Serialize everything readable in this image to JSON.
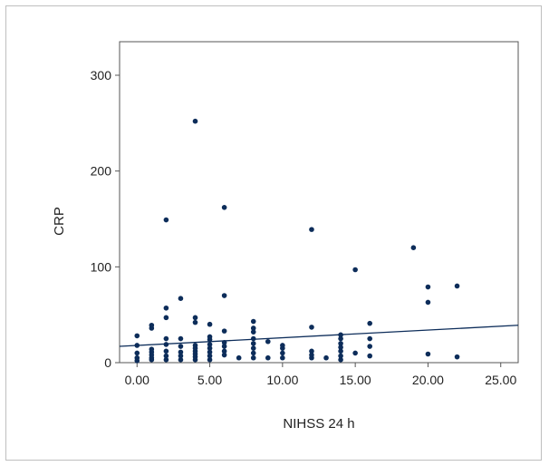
{
  "chart_data": {
    "type": "scatter",
    "xlabel": "NIHSS 24 h",
    "ylabel": "CRP",
    "xlim": [
      -1.2,
      26.2
    ],
    "ylim": [
      0,
      335
    ],
    "x_ticks": [
      0,
      5,
      10,
      15,
      20,
      25
    ],
    "x_tick_labels": [
      "0.00",
      "5.00",
      "10.00",
      "15.00",
      "20.00",
      "25.00"
    ],
    "y_ticks": [
      0,
      100,
      200,
      300
    ],
    "y_tick_labels": [
      "0",
      "100",
      "200",
      "300"
    ],
    "point_color": "#0d2d5a",
    "line_color": "#0d2d5a",
    "fit_line": {
      "x": [
        -1.2,
        26.2
      ],
      "y": [
        17,
        39
      ]
    },
    "points": [
      {
        "x": 0,
        "y": 2
      },
      {
        "x": 0,
        "y": 5
      },
      {
        "x": 0,
        "y": 10
      },
      {
        "x": 0,
        "y": 18
      },
      {
        "x": 0,
        "y": 28
      },
      {
        "x": 1,
        "y": 3
      },
      {
        "x": 1,
        "y": 5
      },
      {
        "x": 1,
        "y": 8
      },
      {
        "x": 1,
        "y": 11
      },
      {
        "x": 1,
        "y": 14
      },
      {
        "x": 1,
        "y": 36
      },
      {
        "x": 1,
        "y": 39
      },
      {
        "x": 2,
        "y": 3
      },
      {
        "x": 2,
        "y": 7
      },
      {
        "x": 2,
        "y": 12
      },
      {
        "x": 2,
        "y": 19
      },
      {
        "x": 2,
        "y": 25
      },
      {
        "x": 2,
        "y": 47
      },
      {
        "x": 2,
        "y": 57
      },
      {
        "x": 2,
        "y": 149
      },
      {
        "x": 3,
        "y": 3
      },
      {
        "x": 3,
        "y": 7
      },
      {
        "x": 3,
        "y": 11
      },
      {
        "x": 3,
        "y": 17
      },
      {
        "x": 3,
        "y": 25
      },
      {
        "x": 3,
        "y": 67
      },
      {
        "x": 4,
        "y": 3
      },
      {
        "x": 4,
        "y": 6
      },
      {
        "x": 4,
        "y": 9
      },
      {
        "x": 4,
        "y": 12
      },
      {
        "x": 4,
        "y": 15
      },
      {
        "x": 4,
        "y": 18
      },
      {
        "x": 4,
        "y": 42
      },
      {
        "x": 4,
        "y": 47
      },
      {
        "x": 4,
        "y": 252
      },
      {
        "x": 5,
        "y": 3
      },
      {
        "x": 5,
        "y": 7
      },
      {
        "x": 5,
        "y": 11
      },
      {
        "x": 5,
        "y": 15
      },
      {
        "x": 5,
        "y": 19
      },
      {
        "x": 5,
        "y": 24
      },
      {
        "x": 5,
        "y": 27
      },
      {
        "x": 5,
        "y": 40
      },
      {
        "x": 6,
        "y": 8
      },
      {
        "x": 6,
        "y": 12
      },
      {
        "x": 6,
        "y": 17
      },
      {
        "x": 6,
        "y": 21
      },
      {
        "x": 6,
        "y": 33
      },
      {
        "x": 6,
        "y": 70
      },
      {
        "x": 6,
        "y": 162
      },
      {
        "x": 7,
        "y": 5
      },
      {
        "x": 8,
        "y": 5
      },
      {
        "x": 8,
        "y": 10
      },
      {
        "x": 8,
        "y": 15
      },
      {
        "x": 8,
        "y": 20
      },
      {
        "x": 8,
        "y": 25
      },
      {
        "x": 8,
        "y": 32
      },
      {
        "x": 8,
        "y": 36
      },
      {
        "x": 8,
        "y": 43
      },
      {
        "x": 9,
        "y": 5
      },
      {
        "x": 9,
        "y": 22
      },
      {
        "x": 10,
        "y": 5
      },
      {
        "x": 10,
        "y": 10
      },
      {
        "x": 10,
        "y": 15
      },
      {
        "x": 10,
        "y": 18
      },
      {
        "x": 12,
        "y": 5
      },
      {
        "x": 12,
        "y": 8
      },
      {
        "x": 12,
        "y": 12
      },
      {
        "x": 12,
        "y": 37
      },
      {
        "x": 12,
        "y": 139
      },
      {
        "x": 13,
        "y": 5
      },
      {
        "x": 14,
        "y": 3
      },
      {
        "x": 14,
        "y": 7
      },
      {
        "x": 14,
        "y": 12
      },
      {
        "x": 14,
        "y": 16
      },
      {
        "x": 14,
        "y": 20
      },
      {
        "x": 14,
        "y": 25
      },
      {
        "x": 14,
        "y": 29
      },
      {
        "x": 15,
        "y": 10
      },
      {
        "x": 15,
        "y": 97
      },
      {
        "x": 16,
        "y": 7
      },
      {
        "x": 16,
        "y": 17
      },
      {
        "x": 16,
        "y": 25
      },
      {
        "x": 16,
        "y": 41
      },
      {
        "x": 19,
        "y": 120
      },
      {
        "x": 20,
        "y": 9
      },
      {
        "x": 20,
        "y": 63
      },
      {
        "x": 20,
        "y": 79
      },
      {
        "x": 22,
        "y": 6
      },
      {
        "x": 22,
        "y": 80
      }
    ]
  }
}
